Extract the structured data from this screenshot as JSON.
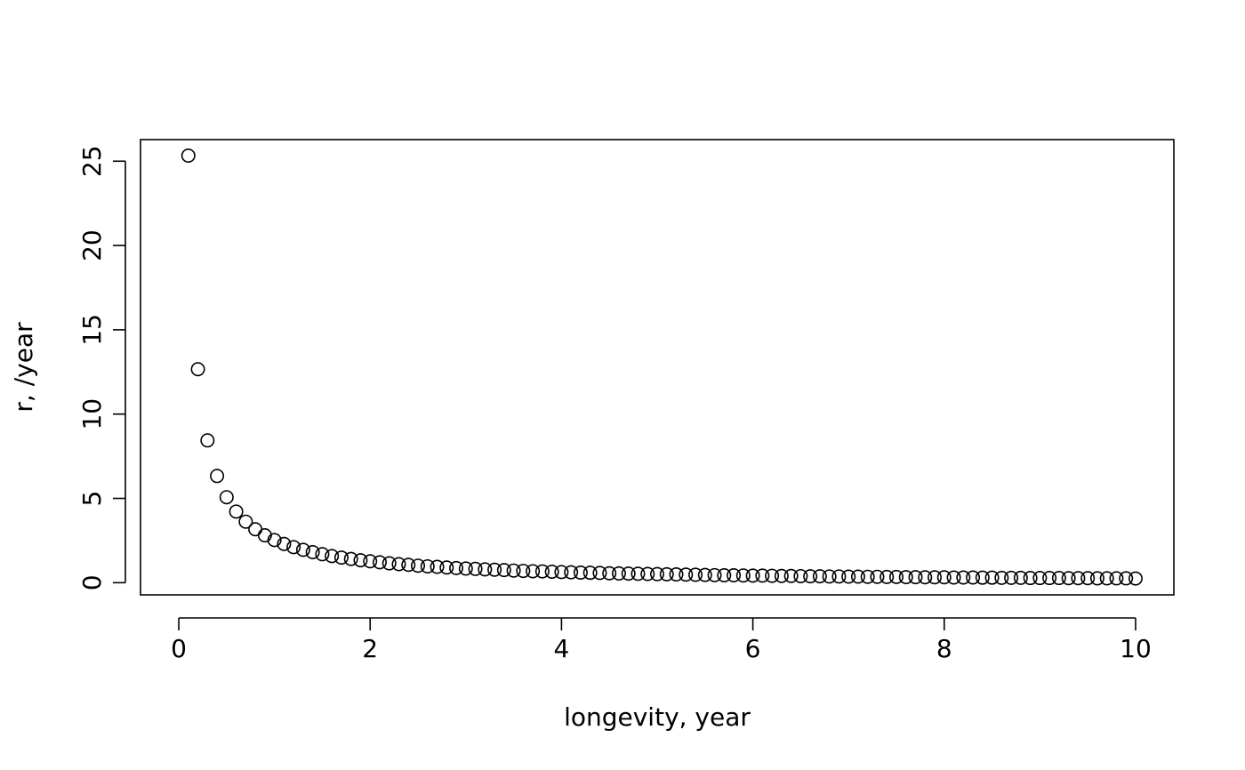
{
  "chart_data": {
    "type": "scatter",
    "title": "",
    "xlabel": "longevity, year",
    "ylabel": "r, /year",
    "xlim": [
      -0.4,
      10.4
    ],
    "ylim": [
      -0.72,
      26.28
    ],
    "x_ticks": [
      0,
      2,
      4,
      6,
      8,
      10
    ],
    "x_tick_labels": [
      "0",
      "2",
      "4",
      "6",
      "8",
      "10"
    ],
    "y_ticks": [
      0,
      5,
      10,
      15,
      20,
      25
    ],
    "y_tick_labels": [
      "0",
      "5",
      "10",
      "15",
      "20",
      "25"
    ],
    "grid": false,
    "legend": "none",
    "series": [
      {
        "x": [
          0.1,
          0.2,
          0.3,
          0.4,
          0.5,
          0.6,
          0.7,
          0.8,
          0.9,
          1.0,
          1.1,
          1.2,
          1.3,
          1.4,
          1.5,
          1.6,
          1.7,
          1.8,
          1.9,
          2.0,
          2.1,
          2.2,
          2.3,
          2.4,
          2.5,
          2.6,
          2.7,
          2.8,
          2.9,
          3.0,
          3.1,
          3.2,
          3.3,
          3.4,
          3.5,
          3.6,
          3.7,
          3.8,
          3.9,
          4.0,
          4.1,
          4.2,
          4.3,
          4.4,
          4.5,
          4.6,
          4.7,
          4.8,
          4.9,
          5.0,
          5.1,
          5.2,
          5.3,
          5.4,
          5.5,
          5.6,
          5.7,
          5.8,
          5.9,
          6.0,
          6.1,
          6.2,
          6.3,
          6.4,
          6.5,
          6.6,
          6.7,
          6.8,
          6.9,
          7.0,
          7.1,
          7.2,
          7.3,
          7.4,
          7.5,
          7.6,
          7.7,
          7.8,
          7.9,
          8.0,
          8.1,
          8.2,
          8.3,
          8.4,
          8.5,
          8.6,
          8.7,
          8.8,
          8.9,
          9.0,
          9.1,
          9.2,
          9.3,
          9.4,
          9.5,
          9.6,
          9.7,
          9.8,
          9.9,
          10.0
        ],
        "y": [
          25.33,
          12.66,
          8.44,
          6.33,
          5.07,
          4.22,
          3.62,
          3.17,
          2.81,
          2.53,
          2.3,
          2.11,
          1.95,
          1.81,
          1.69,
          1.58,
          1.49,
          1.41,
          1.33,
          1.27,
          1.21,
          1.15,
          1.1,
          1.06,
          1.01,
          0.97,
          0.94,
          0.9,
          0.87,
          0.84,
          0.82,
          0.79,
          0.77,
          0.75,
          0.72,
          0.7,
          0.68,
          0.67,
          0.65,
          0.63,
          0.62,
          0.6,
          0.59,
          0.58,
          0.56,
          0.55,
          0.54,
          0.53,
          0.52,
          0.51,
          0.5,
          0.49,
          0.48,
          0.47,
          0.46,
          0.45,
          0.44,
          0.44,
          0.43,
          0.42,
          0.42,
          0.41,
          0.4,
          0.4,
          0.39,
          0.38,
          0.38,
          0.37,
          0.37,
          0.36,
          0.36,
          0.35,
          0.35,
          0.34,
          0.34,
          0.33,
          0.33,
          0.32,
          0.32,
          0.32,
          0.31,
          0.31,
          0.31,
          0.3,
          0.3,
          0.29,
          0.29,
          0.29,
          0.28,
          0.28,
          0.28,
          0.28,
          0.27,
          0.27,
          0.27,
          0.26,
          0.26,
          0.26,
          0.26,
          0.25
        ]
      }
    ]
  }
}
